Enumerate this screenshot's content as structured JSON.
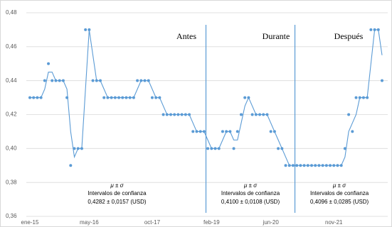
{
  "chart_data": {
    "type": "scatter-line",
    "categories": [
      "ene-15",
      null,
      null,
      null,
      null,
      null,
      null,
      null,
      null,
      null,
      null,
      null,
      null,
      null,
      null,
      null,
      "may-16",
      null,
      null,
      null,
      null,
      null,
      null,
      null,
      null,
      null,
      null,
      null,
      null,
      null,
      null,
      null,
      null,
      "oct-17",
      null,
      null,
      null,
      null,
      null,
      null,
      null,
      null,
      null,
      null,
      null,
      null,
      null,
      null,
      null,
      "feb-19",
      null,
      null,
      null,
      null,
      null,
      null,
      null,
      null,
      null,
      null,
      null,
      null,
      null,
      null,
      null,
      "jun-20",
      null,
      null,
      null,
      null,
      null,
      null,
      null,
      null,
      null,
      null,
      null,
      null,
      null,
      null,
      null,
      null,
      "nov-21",
      null,
      null,
      null,
      null,
      null,
      null,
      null,
      null,
      null,
      null,
      null,
      null,
      null
    ],
    "series": [
      {
        "kind": "points",
        "color": "#5b9bd5",
        "values": [
          0.43,
          0.43,
          0.43,
          0.43,
          0.44,
          0.45,
          0.44,
          0.44,
          0.44,
          0.44,
          0.43,
          0.39,
          0.4,
          0.4,
          0.4,
          0.47,
          0.47,
          0.44,
          0.44,
          0.44,
          0.43,
          0.43,
          0.43,
          0.43,
          0.43,
          0.43,
          0.43,
          0.43,
          0.43,
          0.44,
          0.44,
          0.44,
          0.44,
          0.43,
          0.43,
          0.43,
          0.42,
          0.42,
          0.42,
          0.42,
          0.42,
          0.42,
          0.42,
          0.42,
          0.41,
          0.41,
          0.41,
          0.41,
          0.4,
          0.4,
          0.4,
          0.4,
          0.41,
          0.41,
          0.41,
          0.4,
          0.41,
          0.42,
          0.43,
          0.43,
          0.42,
          0.42,
          0.42,
          0.42,
          0.42,
          0.41,
          0.41,
          0.4,
          0.4,
          0.39,
          0.39,
          0.39,
          0.39,
          0.39,
          0.39,
          0.39,
          0.39,
          0.39,
          0.39,
          0.39,
          0.39,
          0.39,
          0.39,
          0.39,
          0.39,
          0.4,
          0.42,
          0.41,
          0.43,
          0.43,
          0.43,
          0.43,
          0.47,
          0.47,
          0.47,
          0.44
        ]
      },
      {
        "kind": "line",
        "color": "#5b9bd5",
        "values": [
          0.43,
          0.43,
          0.43,
          0.43,
          0.435,
          0.445,
          0.445,
          0.44,
          0.44,
          0.44,
          0.435,
          0.41,
          0.395,
          0.4,
          0.4,
          0.435,
          0.47,
          0.455,
          0.44,
          0.44,
          0.435,
          0.43,
          0.43,
          0.43,
          0.43,
          0.43,
          0.43,
          0.43,
          0.43,
          0.435,
          0.44,
          0.44,
          0.44,
          0.435,
          0.43,
          0.43,
          0.425,
          0.42,
          0.42,
          0.42,
          0.42,
          0.42,
          0.42,
          0.42,
          0.415,
          0.41,
          0.41,
          0.41,
          0.405,
          0.4,
          0.4,
          0.4,
          0.405,
          0.41,
          0.41,
          0.405,
          0.405,
          0.415,
          0.425,
          0.43,
          0.425,
          0.42,
          0.42,
          0.42,
          0.42,
          0.415,
          0.41,
          0.405,
          0.4,
          0.395,
          0.39,
          0.39,
          0.39,
          0.39,
          0.39,
          0.39,
          0.39,
          0.39,
          0.39,
          0.39,
          0.39,
          0.39,
          0.39,
          0.39,
          0.39,
          0.395,
          0.41,
          0.415,
          0.42,
          0.43,
          0.43,
          0.43,
          0.45,
          0.47,
          0.47,
          0.455
        ]
      }
    ],
    "ylim": [
      0.36,
      0.48
    ],
    "yticks": [
      {
        "value": 0.36,
        "label": "0,36"
      },
      {
        "value": 0.38,
        "label": "0,38"
      },
      {
        "value": 0.4,
        "label": "0,40"
      },
      {
        "value": 0.42,
        "label": "0,42"
      },
      {
        "value": 0.44,
        "label": "0,44"
      },
      {
        "value": 0.46,
        "label": "0,46"
      },
      {
        "value": 0.48,
        "label": "0,48"
      }
    ],
    "grid": true,
    "periods": [
      {
        "name": "Antes",
        "start": 0,
        "end": 47,
        "stat": "μ ± σ",
        "label": "Intervalos de confianza",
        "value": "0,4282 ± 0,0157 (USD)"
      },
      {
        "name": "Durante",
        "start": 48,
        "end": 71,
        "stat": "μ ± σ",
        "label": "Intervalos de confianza",
        "value": "0,4100 ± 0,0108 (USD)"
      },
      {
        "name": "Después",
        "start": 72,
        "end": 95,
        "stat": "μ ± σ",
        "label": "Intervalos de confianza",
        "value": "0,4096 ± 0,0285 (USD)"
      }
    ]
  }
}
